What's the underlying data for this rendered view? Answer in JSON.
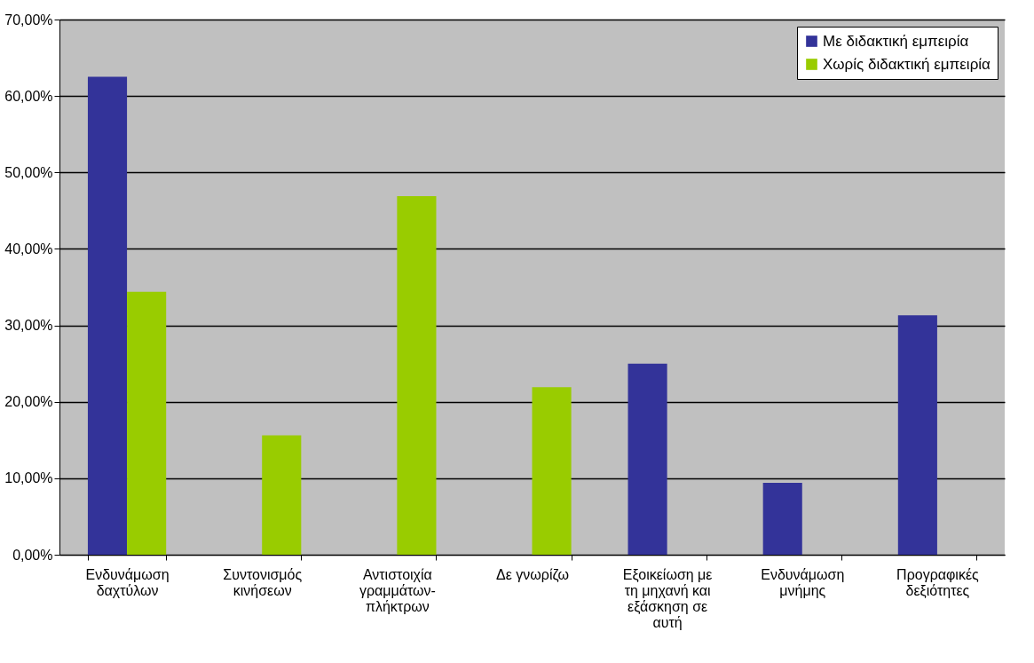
{
  "chart_data": {
    "type": "bar",
    "categories": [
      "Ενδυνάμωση δαχτύλων",
      "Συντονισμός κινήσεων",
      "Αντιστοιχία γραμμάτων-πλήκτρων",
      "Δε γνωρίζω",
      "Εξοικείωση με τη μηχανή και εξάσκηση σε αυτή",
      "Ενδυνάμωση μνήμης",
      "Προγραφικές δεξιότητες"
    ],
    "series": [
      {
        "name": "Με διδακτική εμπειρία",
        "color": "#333399",
        "values": [
          62.5,
          null,
          null,
          null,
          25,
          9.4,
          31.3
        ]
      },
      {
        "name": "Χωρίς διδακτική εμπειρία",
        "color": "#99cc00",
        "values": [
          34.4,
          15.6,
          46.9,
          21.9,
          null,
          null,
          null
        ]
      }
    ],
    "ylim": [
      0,
      70
    ],
    "yticks": [
      {
        "value": 0,
        "label": "0,00%"
      },
      {
        "value": 10,
        "label": "10,00%"
      },
      {
        "value": 20,
        "label": "20,00%"
      },
      {
        "value": 30,
        "label": "30,00%"
      },
      {
        "value": 40,
        "label": "40,00%"
      },
      {
        "value": 50,
        "label": "50,00%"
      },
      {
        "value": 60,
        "label": "60,00%"
      },
      {
        "value": 70,
        "label": "70,00%"
      }
    ],
    "grid": "y",
    "legend": "top right"
  }
}
